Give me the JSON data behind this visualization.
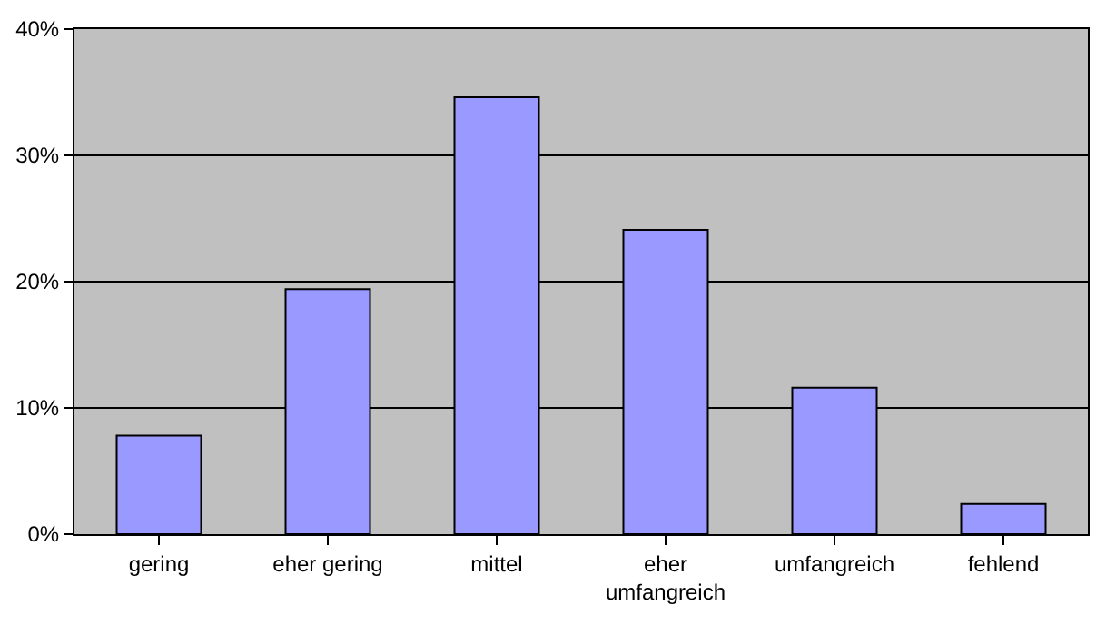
{
  "chart_data": {
    "type": "bar",
    "categories": [
      "gering",
      "eher gering",
      "mittel",
      "eher\numfangreich",
      "umfangreich",
      "fehlend"
    ],
    "values": [
      7.8,
      19.4,
      34.6,
      24.1,
      11.6,
      2.4
    ],
    "color": "#9999ff",
    "ylim": [
      0,
      40
    ],
    "yticks": [
      {
        "value": 0,
        "label": "0%"
      },
      {
        "value": 10,
        "label": "10%"
      },
      {
        "value": 20,
        "label": "20%"
      },
      {
        "value": 30,
        "label": "30%"
      },
      {
        "value": 40,
        "label": "40%"
      }
    ],
    "grid": "y"
  }
}
